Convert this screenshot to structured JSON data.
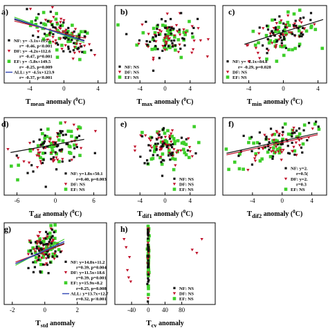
{
  "figure": {
    "colors": {
      "NF": "#111111",
      "DF": "#c0102a",
      "EF": "#3ecf2a",
      "ALL": "#3a4fb8"
    }
  },
  "chart_data": [
    {
      "panel": "a)",
      "type": "scatter",
      "xlabel_main": "T",
      "xlabel_sub": "mean",
      "xlabel_tail": " anomaly (",
      "xlabel_unit": "0",
      "xlabel_end": "C)",
      "xlim": [
        -7,
        5
      ],
      "ylim": [
        0,
        1
      ],
      "xticks": [
        {
          "v": -4,
          "label": "-4"
        },
        {
          "v": 0,
          "label": "0"
        },
        {
          "v": 4,
          "label": "4"
        }
      ],
      "cloud": {
        "cx": -0.2,
        "cy": 0.62,
        "sx": 1.8,
        "sy": 0.12,
        "n": {
          "NF": 45,
          "DF": 45,
          "EF": 45
        },
        "slope": -0.05
      },
      "lines": [
        {
          "series": "NF",
          "x": [
            -5.8,
            2.4
          ],
          "y": [
            0.82,
            0.55
          ]
        },
        {
          "series": "DF",
          "x": [
            -5.8,
            2.4
          ],
          "y": [
            0.8,
            0.58
          ]
        },
        {
          "series": "EF",
          "x": [
            -5.8,
            2.4
          ],
          "y": [
            0.85,
            0.52
          ]
        },
        {
          "series": "ALL",
          "x": [
            -5.8,
            2.4
          ],
          "y": [
            0.83,
            0.54
          ]
        }
      ],
      "legend": {
        "pos": "left",
        "entries": [
          {
            "series": "NF",
            "text1": "NF: y= -3.1x+115.3",
            "text2": "r= -0.46, p<0.001"
          },
          {
            "series": "DF",
            "text1": "DF: y= -4.2x+112.6",
            "text2": "r= -0.47, p=0.001"
          },
          {
            "series": "EF",
            "text1": "EF: y= -5.8x+149.5",
            "text2": "r= -0.25, p=0.009"
          },
          {
            "series": "ALL",
            "text1": "ALL: y= -4.5x+123.9",
            "text2": "r= -0.37, p<0.001"
          }
        ]
      }
    },
    {
      "panel": "b)",
      "type": "scatter",
      "xlabel_main": "T",
      "xlabel_sub": "max",
      "xlabel_tail": " anomaly (",
      "xlabel_unit": "0",
      "xlabel_end": "C)",
      "xlim": [
        -8,
        8
      ],
      "ylim": [
        0,
        1
      ],
      "xticks": [
        {
          "v": -4,
          "label": "-4"
        },
        {
          "v": 0,
          "label": "0"
        },
        {
          "v": 4,
          "label": "4"
        }
      ],
      "cloud": {
        "cx": 0.5,
        "cy": 0.6,
        "sx": 2.3,
        "sy": 0.13,
        "n": {
          "NF": 45,
          "DF": 45,
          "EF": 45
        },
        "slope": 0
      },
      "lines": [],
      "legend": {
        "pos": "left",
        "entries": [
          {
            "series": "NF",
            "text1": "NF: NS",
            "text2": ""
          },
          {
            "series": "DF",
            "text1": "DF: NS",
            "text2": ""
          },
          {
            "series": "EF",
            "text1": "EF: NS",
            "text2": ""
          }
        ]
      }
    },
    {
      "panel": "c)",
      "type": "scatter",
      "xlabel_main": "T",
      "xlabel_sub": "min",
      "xlabel_tail": " anomaly (",
      "xlabel_unit": "0",
      "xlabel_end": "C)",
      "xlim": [
        -7,
        5
      ],
      "ylim": [
        0,
        1
      ],
      "xticks": [
        {
          "v": -4,
          "label": "-4"
        },
        {
          "v": 0,
          "label": "0"
        },
        {
          "v": 4,
          "label": "4"
        }
      ],
      "cloud": {
        "cx": 0,
        "cy": 0.62,
        "sx": 2,
        "sy": 0.12,
        "n": {
          "NF": 45,
          "DF": 45,
          "EF": 45
        },
        "slope": 0.03
      },
      "lines": [
        {
          "series": "NF",
          "x": [
            -4.5,
            4.6
          ],
          "y": [
            0.5,
            0.82
          ]
        }
      ],
      "legend": {
        "pos": "left",
        "entries": [
          {
            "series": "NF",
            "text1": "NF: y= -2.1x+84.8",
            "text2": "r= -0.29, p=0.028"
          },
          {
            "series": "DF",
            "text1": "DF: NS",
            "text2": ""
          },
          {
            "series": "EF",
            "text1": "EF: NS",
            "text2": ""
          }
        ]
      }
    },
    {
      "panel": "d)",
      "type": "scatter",
      "xlabel_main": "T",
      "xlabel_sub": "dif",
      "xlabel_tail": " anomaly (",
      "xlabel_unit": "0",
      "xlabel_end": "C)",
      "xlim": [
        -8,
        8
      ],
      "ylim": [
        0,
        1
      ],
      "xticks": [
        {
          "v": -6,
          "label": "-6"
        },
        {
          "v": 0,
          "label": "0"
        },
        {
          "v": 6,
          "label": "6"
        }
      ],
      "cloud": {
        "cx": 0,
        "cy": 0.62,
        "sx": 2.6,
        "sy": 0.12,
        "n": {
          "NF": 45,
          "DF": 45,
          "EF": 45
        },
        "slope": 0.02
      },
      "lines": [
        {
          "series": "NF",
          "x": [
            -7,
            4.5
          ],
          "y": [
            0.55,
            0.72
          ]
        }
      ],
      "legend": {
        "pos": "right",
        "entries": [
          {
            "series": "NF",
            "text1": "NF: y=1.8x+50.1",
            "text2": "r=0.40, p=0.003"
          },
          {
            "series": "DF",
            "text1": "DF: NS",
            "text2": ""
          },
          {
            "series": "EF",
            "text1": "EF: NS",
            "text2": ""
          }
        ]
      }
    },
    {
      "panel": "e)",
      "type": "scatter",
      "xlabel_main": "T",
      "xlabel_sub": "dif1",
      "xlabel_tail": " anomaly (",
      "xlabel_unit": "0",
      "xlabel_end": "C)",
      "xlim": [
        -8,
        8
      ],
      "ylim": [
        0,
        1
      ],
      "xticks": [
        {
          "v": -4,
          "label": "-4"
        },
        {
          "v": 0,
          "label": "0"
        },
        {
          "v": 4,
          "label": "4"
        }
      ],
      "cloud": {
        "cx": 0,
        "cy": 0.62,
        "sx": 2.3,
        "sy": 0.13,
        "n": {
          "NF": 45,
          "DF": 45,
          "EF": 45
        },
        "slope": 0
      },
      "lines": [],
      "legend": {
        "pos": "right",
        "entries": [
          {
            "series": "NF",
            "text1": "NF: NS",
            "text2": ""
          },
          {
            "series": "DF",
            "text1": "DF: NS",
            "text2": ""
          },
          {
            "series": "EF",
            "text1": "EF: NS",
            "text2": ""
          }
        ]
      }
    },
    {
      "panel": "f)",
      "type": "scatter",
      "xlabel_main": "T",
      "xlabel_sub": "dif2",
      "xlabel_tail": " anomaly (",
      "xlabel_unit": "0",
      "xlabel_end": "C)",
      "xlim": [
        -8,
        6
      ],
      "ylim": [
        0,
        1
      ],
      "xticks": [
        {
          "v": -4,
          "label": "-4"
        },
        {
          "v": 0,
          "label": "0"
        },
        {
          "v": 4,
          "label": "4"
        }
      ],
      "cloud": {
        "cx": -1,
        "cy": 0.66,
        "sx": 2.5,
        "sy": 0.12,
        "n": {
          "NF": 45,
          "DF": 45,
          "EF": 45
        },
        "slope": 0.03
      },
      "lines": [
        {
          "series": "NF",
          "x": [
            -7.5,
            4.8
          ],
          "y": [
            0.54,
            0.8
          ]
        },
        {
          "series": "DF",
          "x": [
            -7.5,
            4.8
          ],
          "y": [
            0.52,
            0.78
          ]
        }
      ],
      "legend": {
        "pos": "right",
        "entries": [
          {
            "series": "NF",
            "text1": "NF: y=2.",
            "text2": "r=0.5("
          },
          {
            "series": "DF",
            "text1": "DF: y=2.",
            "text2": "r=0.3"
          },
          {
            "series": "EF",
            "text1": "EF: NS",
            "text2": ""
          }
        ]
      }
    },
    {
      "panel": "g)",
      "type": "scatter",
      "xlabel_main": "T",
      "xlabel_sub": "std",
      "xlabel_tail": " anomaly",
      "xlabel_unit": "",
      "xlabel_end": "",
      "xlim": [
        -2.5,
        3.8
      ],
      "ylim": [
        0,
        1
      ],
      "xticks": [
        {
          "v": -2,
          "label": "-2"
        },
        {
          "v": 0,
          "label": "0"
        },
        {
          "v": 2,
          "label": "2"
        }
      ],
      "cloud": {
        "cx": 0,
        "cy": 0.68,
        "sx": 0.45,
        "sy": 0.12,
        "n": {
          "NF": 50,
          "DF": 50,
          "EF": 55
        },
        "slope": 0.08
      },
      "lines": [
        {
          "series": "NF",
          "x": [
            -1.8,
            1.2
          ],
          "y": [
            0.5,
            0.75
          ]
        },
        {
          "series": "DF",
          "x": [
            -1.8,
            1.2
          ],
          "y": [
            0.52,
            0.74
          ]
        },
        {
          "series": "EF",
          "x": [
            -1.8,
            1.2
          ],
          "y": [
            0.48,
            0.8
          ]
        },
        {
          "series": "ALL",
          "x": [
            -1.8,
            1.2
          ],
          "y": [
            0.5,
            0.77
          ]
        }
      ],
      "legend": {
        "pos": "right",
        "entries": [
          {
            "series": "NF",
            "text1": "NF: y=14.8x+11.2",
            "text2": "r=0.39, p=0.004"
          },
          {
            "series": "DF",
            "text1": "DF: y=11.5x+18.6",
            "text2": "r=0.39, p=0.001"
          },
          {
            "series": "EF",
            "text1": "EF: y=15.9x+8.2",
            "text2": "r=0.25, p=0.008"
          },
          {
            "series": "ALL",
            "text1": "ALL: y=13.7x+12.7",
            "text2": "r=0.32, p<0.001"
          }
        ]
      }
    },
    {
      "panel": "h)",
      "type": "scatter",
      "xlabel_main": "T",
      "xlabel_sub": "cv",
      "xlabel_tail": " anomaly",
      "xlabel_unit": "",
      "xlabel_end": "",
      "xlim": [
        -80,
        160
      ],
      "ylim": [
        0,
        1
      ],
      "xticks": [
        {
          "v": -40,
          "label": "-40"
        },
        {
          "v": 0,
          "label": "0"
        },
        {
          "v": 40,
          "label": "40"
        },
        {
          "v": 80,
          "label": "80"
        }
      ],
      "cloud": {
        "cx": 0,
        "cy": 0.6,
        "sx": 0.8,
        "sy": 0.2,
        "n": {
          "NF": 30,
          "DF": 30,
          "EF": 50
        },
        "slope": 0
      },
      "outliers": {
        "series": "DF",
        "x": [
          -58,
          -53,
          -50,
          -47,
          -45,
          -42,
          105,
          116,
          128
        ],
        "y": [
          0.8,
          0.7,
          0.42,
          0.33,
          0.58,
          0.28,
          0.67,
          0.63,
          0.8
        ]
      },
      "lines": [],
      "legend": {
        "pos": "right",
        "entries": [
          {
            "series": "NF",
            "text1": "NF: NS",
            "text2": ""
          },
          {
            "series": "DF",
            "text1": "DF: NS",
            "text2": ""
          },
          {
            "series": "EF",
            "text1": "EF: NS",
            "text2": ""
          }
        ]
      }
    }
  ]
}
